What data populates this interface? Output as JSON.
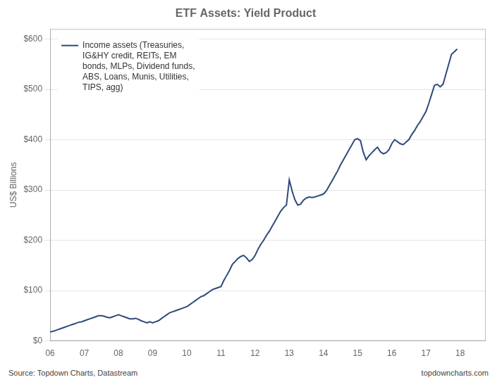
{
  "chart_data": {
    "type": "line",
    "title": "ETF Assets: Yield Product",
    "ylabel": "US$ Billions",
    "annotations": [
      "Source: Topdown Charts, Datastream",
      "topdowncharts.com"
    ],
    "legend": "upper left",
    "grid": "y",
    "xlim": [
      2006.0,
      2018.75
    ],
    "ylim": [
      0,
      620
    ],
    "xticks": [
      {
        "value": 2006,
        "label": "06"
      },
      {
        "value": 2007,
        "label": "07"
      },
      {
        "value": 2008,
        "label": "08"
      },
      {
        "value": 2009,
        "label": "09"
      },
      {
        "value": 2010,
        "label": "10"
      },
      {
        "value": 2011,
        "label": "11"
      },
      {
        "value": 2012,
        "label": "12"
      },
      {
        "value": 2013,
        "label": "13"
      },
      {
        "value": 2014,
        "label": "14"
      },
      {
        "value": 2015,
        "label": "15"
      },
      {
        "value": 2016,
        "label": "16"
      },
      {
        "value": 2017,
        "label": "17"
      },
      {
        "value": 2018,
        "label": "18"
      }
    ],
    "yticks": [
      {
        "value": 0,
        "label": "$0"
      },
      {
        "value": 100,
        "label": "$100"
      },
      {
        "value": 200,
        "label": "$200"
      },
      {
        "value": 300,
        "label": "$300"
      },
      {
        "value": 400,
        "label": "$400"
      },
      {
        "value": 500,
        "label": "$500"
      },
      {
        "value": 600,
        "label": "$600"
      }
    ],
    "x": [
      2006,
      2006.083333333333,
      2006.166666666667,
      2006.25,
      2006.333333333333,
      2006.416666666667,
      2006.5,
      2006.583333333333,
      2006.666666666667,
      2006.75,
      2006.833333333333,
      2006.916666666667,
      2007,
      2007.083333333333,
      2007.166666666667,
      2007.25,
      2007.333333333333,
      2007.416666666667,
      2007.5,
      2007.583333333333,
      2007.666666666667,
      2007.75,
      2007.833333333333,
      2007.916666666667,
      2008,
      2008.083333333333,
      2008.166666666667,
      2008.25,
      2008.333333333333,
      2008.416666666667,
      2008.5,
      2008.583333333333,
      2008.666666666667,
      2008.75,
      2008.833333333333,
      2008.916666666667,
      2009,
      2009.083333333333,
      2009.166666666667,
      2009.25,
      2009.333333333333,
      2009.416666666667,
      2009.5,
      2009.583333333333,
      2009.666666666667,
      2009.75,
      2009.833333333333,
      2009.916666666667,
      2010,
      2010.083333333333,
      2010.166666666667,
      2010.25,
      2010.333333333333,
      2010.416666666667,
      2010.5,
      2010.583333333333,
      2010.666666666667,
      2010.75,
      2010.833333333333,
      2010.916666666667,
      2011,
      2011.083333333333,
      2011.166666666667,
      2011.25,
      2011.333333333333,
      2011.416666666667,
      2011.5,
      2011.583333333333,
      2011.666666666667,
      2011.75,
      2011.833333333333,
      2011.916666666667,
      2012,
      2012.083333333333,
      2012.166666666667,
      2012.25,
      2012.333333333333,
      2012.416666666667,
      2012.5,
      2012.583333333333,
      2012.666666666667,
      2012.75,
      2012.833333333333,
      2012.916666666667,
      2013,
      2013.083333333333,
      2013.166666666667,
      2013.25,
      2013.333333333333,
      2013.416666666667,
      2013.5,
      2013.583333333333,
      2013.666666666667,
      2013.75,
      2013.833333333333,
      2013.916666666667,
      2014,
      2014.083333333333,
      2014.166666666667,
      2014.25,
      2014.333333333333,
      2014.416666666667,
      2014.5,
      2014.583333333333,
      2014.666666666667,
      2014.75,
      2014.833333333333,
      2014.916666666667,
      2015,
      2015.083333333333,
      2015.166666666667,
      2015.25,
      2015.333333333333,
      2015.416666666667,
      2015.5,
      2015.583333333333,
      2015.666666666667,
      2015.75,
      2015.833333333333,
      2015.916666666667,
      2016,
      2016.083333333333,
      2016.166666666667,
      2016.25,
      2016.333333333333,
      2016.416666666667,
      2016.5,
      2016.583333333333,
      2016.666666666667,
      2016.75,
      2016.833333333333,
      2016.916666666667,
      2017,
      2017.083333333333,
      2017.166666666667,
      2017.25,
      2017.333333333333,
      2017.416666666667,
      2017.5,
      2017.583333333333,
      2017.666666666667,
      2017.75,
      2017.833333333333,
      2017.916666666667
    ],
    "series": [
      {
        "name": "Income assets (Treasuries,\nIG&HY credit, REITs, EM\nbonds, MLPs, Dividend funds,\nABS, Loans, Munis, Utilities,\nTIPS, agg)",
        "color": "#2e4a7a",
        "values": [
          18,
          19,
          21,
          23,
          25,
          27,
          29,
          31,
          33,
          35,
          37,
          38,
          40,
          42,
          44,
          46,
          48,
          50,
          50,
          49,
          47,
          46,
          48,
          50,
          52,
          50,
          48,
          46,
          44,
          44,
          45,
          43,
          40,
          38,
          36,
          38,
          36,
          38,
          40,
          44,
          48,
          52,
          56,
          58,
          60,
          62,
          64,
          66,
          68,
          72,
          76,
          80,
          84,
          88,
          90,
          94,
          98,
          102,
          104,
          106,
          108,
          120,
          130,
          140,
          152,
          158,
          164,
          168,
          170,
          165,
          158,
          162,
          170,
          182,
          192,
          200,
          210,
          218,
          228,
          238,
          248,
          258,
          265,
          270,
          320,
          298,
          280,
          270,
          272,
          280,
          284,
          286,
          285,
          286,
          288,
          290,
          292,
          298,
          308,
          318,
          328,
          338,
          350,
          360,
          370,
          380,
          390,
          400,
          402,
          398,
          375,
          360,
          368,
          374,
          380,
          385,
          376,
          372,
          374,
          380,
          392,
          400,
          396,
          392,
          390,
          395,
          400,
          410,
          418,
          428,
          436,
          446,
          456,
          472,
          490,
          508,
          510,
          505,
          510,
          530,
          550,
          570,
          575,
          580
        ]
      }
    ]
  }
}
